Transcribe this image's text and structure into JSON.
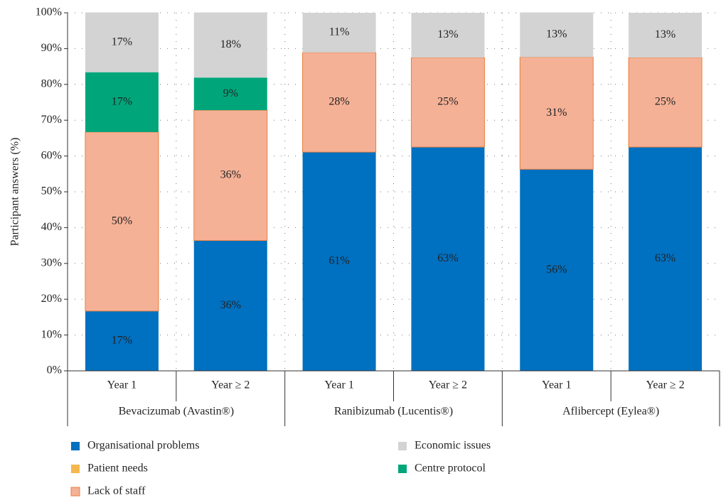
{
  "chart_data": {
    "type": "stacked_bar",
    "ylabel": "Participant answers (%)",
    "categories": [
      "Year 1",
      "Year ≥ 2",
      "Year 1",
      "Year ≥ 2",
      "Year 1",
      "Year ≥ 2"
    ],
    "groups": [
      "Bevacizumab (Avastin®)",
      "Ranibizumab (Lucentis®)",
      "Aflibercept (Eylea®)"
    ],
    "ylim": [
      0,
      100
    ],
    "yticks": [
      {
        "value": 0,
        "label": "0%"
      },
      {
        "value": 10,
        "label": "10%"
      },
      {
        "value": 20,
        "label": "20%"
      },
      {
        "value": 30,
        "label": "30%"
      },
      {
        "value": 40,
        "label": "40%"
      },
      {
        "value": 50,
        "label": "50%"
      },
      {
        "value": 60,
        "label": "60%"
      },
      {
        "value": 70,
        "label": "70%"
      },
      {
        "value": 80,
        "label": "80%"
      },
      {
        "value": 90,
        "label": "90%"
      },
      {
        "value": 100,
        "label": "100%"
      }
    ],
    "grid": true,
    "series": [
      {
        "name": "Organisational problems",
        "color": "#0070c0",
        "values": [
          16.7,
          36.4,
          61.1,
          62.5,
          56.3,
          62.5
        ],
        "value_labels": [
          "17%",
          "36%",
          "61%",
          "63%",
          "56%",
          "63%"
        ]
      },
      {
        "name": "Patient needs",
        "color": "#f5b84e",
        "values": [
          0,
          0,
          0,
          0,
          0,
          0
        ]
      },
      {
        "name": "Lack of staff",
        "color": "#f5b196",
        "values": [
          50,
          36.4,
          27.8,
          25,
          31.3,
          25
        ],
        "value_labels": [
          "50%",
          "36%",
          "28%",
          "25%",
          "31%",
          "25%"
        ]
      },
      {
        "name": "Centre protocol",
        "color": "#00a67a",
        "values": [
          16.7,
          9.1,
          0,
          0,
          0,
          0
        ],
        "value_labels": [
          "17%",
          "9%",
          null,
          null,
          null,
          null
        ]
      },
      {
        "name": "Economic issues",
        "color": "#d3d3d3",
        "values": [
          16.7,
          18.2,
          11.1,
          12.5,
          12.5,
          12.5
        ],
        "value_labels": [
          "17%",
          "18%",
          "11%",
          "13%",
          "13%",
          "13%"
        ]
      }
    ]
  }
}
